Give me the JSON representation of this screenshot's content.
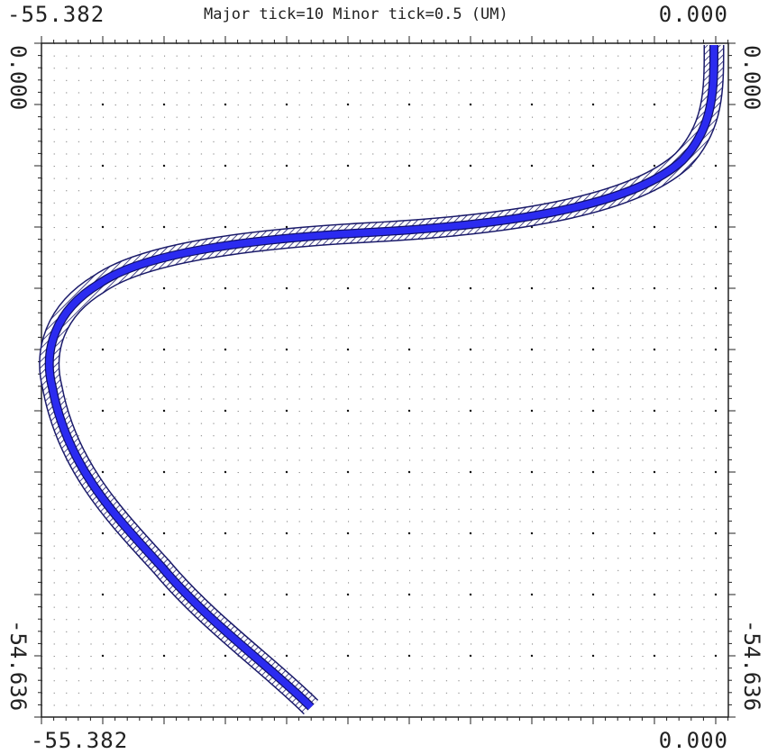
{
  "viewer": {
    "title": "Major tick=10 Minor tick=0.5 (UM)",
    "x_min_label": "-55.382",
    "x_max_label": "0.000",
    "y_top_label": "0.000",
    "y_bottom_label": "-54.636",
    "grid": true,
    "colors": {
      "waveguide_core": "#2b2bf0",
      "cladding_hatch": "#1a1a6a",
      "frame": "#222222",
      "grid_dot": "#333333"
    }
  }
}
